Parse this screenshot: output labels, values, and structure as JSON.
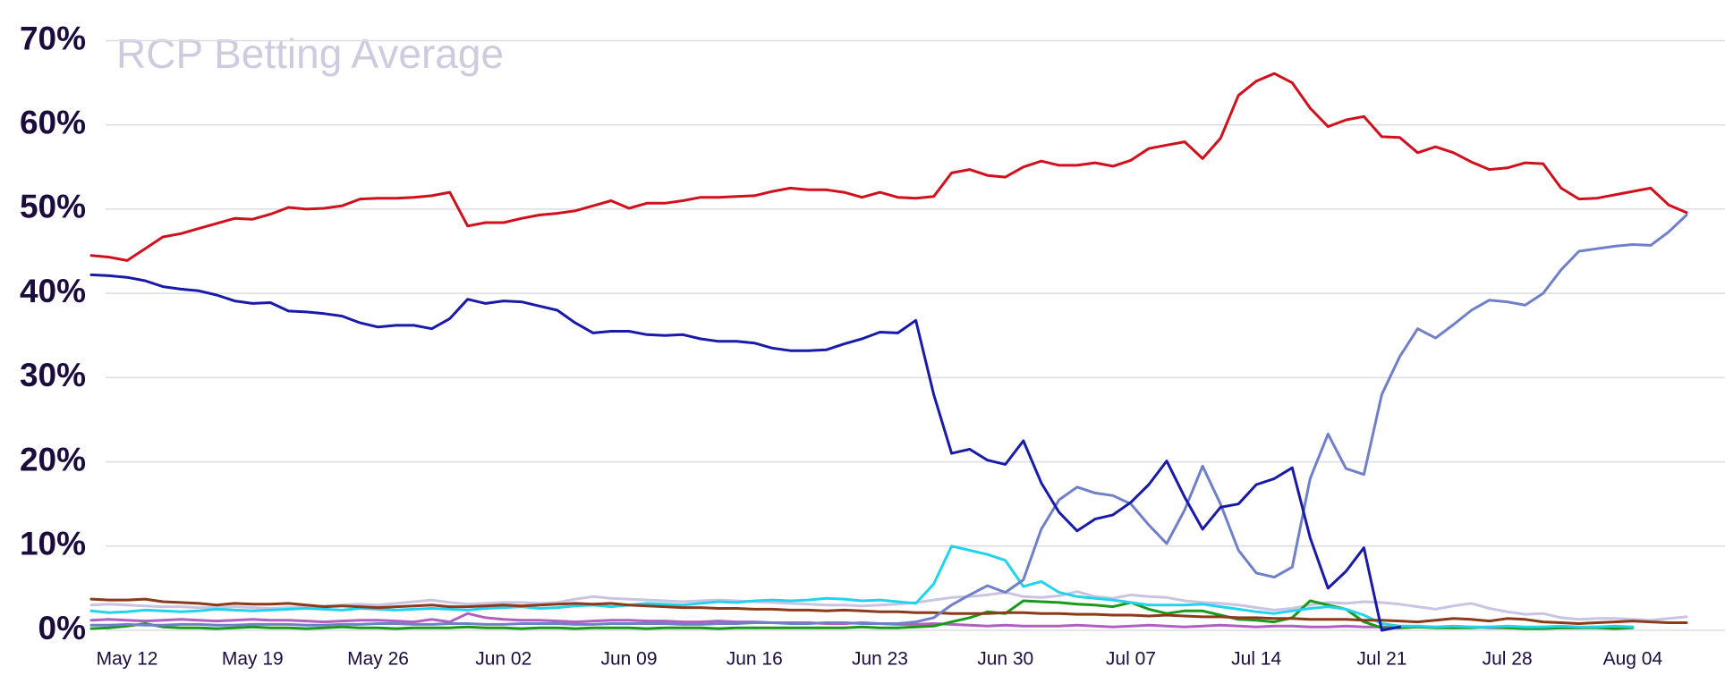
{
  "chart_data": {
    "type": "line",
    "title": "RCP Betting Average",
    "categories": [
      null,
      null,
      "May 12",
      null,
      null,
      null,
      null,
      null,
      null,
      "May 19",
      null,
      null,
      null,
      null,
      null,
      null,
      "May 26",
      null,
      null,
      null,
      null,
      null,
      null,
      "Jun 02",
      null,
      null,
      null,
      null,
      null,
      null,
      "Jun 09",
      null,
      null,
      null,
      null,
      null,
      null,
      "Jun 16",
      null,
      null,
      null,
      null,
      null,
      null,
      "Jun 23",
      null,
      null,
      null,
      null,
      null,
      null,
      "Jun 30",
      null,
      null,
      null,
      null,
      null,
      null,
      "Jul 07",
      null,
      null,
      null,
      null,
      null,
      null,
      "Jul 14",
      null,
      null,
      null,
      null,
      null,
      null,
      "Jul 21",
      null,
      null,
      null,
      null,
      null,
      null,
      "Jul 28",
      null,
      null,
      null,
      null,
      null,
      null,
      "Aug 04",
      null,
      null,
      null
    ],
    "ylim": [
      0,
      70
    ],
    "yticks": [
      {
        "value": 0,
        "label": "0%"
      },
      {
        "value": 10,
        "label": "10%"
      },
      {
        "value": 20,
        "label": "20%"
      },
      {
        "value": 30,
        "label": "30%"
      },
      {
        "value": 40,
        "label": "40%"
      },
      {
        "value": 50,
        "label": "50%"
      },
      {
        "value": 60,
        "label": "60%"
      },
      {
        "value": 70,
        "label": "70%"
      }
    ],
    "grid": true,
    "series": [
      {
        "color": "#cac3e2",
        "values": [
          3,
          3.1,
          3,
          2.9,
          2.8,
          2.8,
          2.7,
          2.7,
          2.8,
          2.7,
          2.6,
          2.7,
          2.8,
          2.9,
          3,
          3.1,
          3,
          3.2,
          3.4,
          3.6,
          3.3,
          3.1,
          3.2,
          3.3,
          3.3,
          3.2,
          3.3,
          3.7,
          4,
          3.8,
          3.7,
          3.6,
          3.5,
          3.4,
          3.5,
          3.6,
          3.5,
          3.4,
          3.3,
          3.2,
          3.1,
          3,
          3,
          2.9,
          3,
          3.1,
          3.3,
          3.6,
          3.9,
          4,
          4.2,
          4.5,
          4,
          3.9,
          4.1,
          4.6,
          4,
          3.8,
          4.2,
          4,
          3.9,
          3.5,
          3.3,
          3.2,
          3,
          2.7,
          2.4,
          2.6,
          3,
          3.3,
          3.2,
          3.4,
          3.3,
          3.1,
          2.8,
          2.5,
          2.9,
          3.2,
          2.6,
          2.2,
          1.9,
          2,
          1.5,
          1.3,
          1.4,
          1.4,
          1.3,
          1.2,
          1.4,
          1.6
        ]
      },
      {
        "color": "#b060c0",
        "values": [
          1.2,
          1.3,
          1.2,
          1.1,
          1.2,
          1.3,
          1.2,
          1.1,
          1.2,
          1.3,
          1.2,
          1.2,
          1.1,
          1,
          1.1,
          1.2,
          1.2,
          1.1,
          1,
          1.3,
          1,
          2,
          1.5,
          1.3,
          1.2,
          1.2,
          1.1,
          1,
          1.1,
          1.2,
          1.2,
          1.1,
          1.1,
          1,
          1,
          1.1,
          1,
          1,
          0.9,
          0.9,
          0.9,
          0.8,
          0.8,
          0.9,
          0.8,
          0.7,
          0.7,
          0.8,
          0.7,
          0.6,
          0.5,
          0.6,
          0.5,
          0.5,
          0.5,
          0.6,
          0.5,
          0.4,
          0.5,
          0.6,
          0.5,
          0.4,
          0.5,
          0.6,
          0.5,
          0.4,
          0.5,
          0.5,
          0.4,
          0.4,
          0.5,
          0.4,
          0.4,
          0.3,
          0.4,
          0.4,
          0.3,
          0.4,
          0.3,
          0.3,
          0.3,
          0.4,
          0.3,
          0.3,
          0.4,
          0.3,
          0.4,
          null,
          null,
          null
        ]
      },
      {
        "color": "#1a9a1a",
        "values": [
          0.2,
          0.3,
          0.5,
          0.8,
          0.4,
          0.3,
          0.3,
          0.2,
          0.3,
          0.4,
          0.3,
          0.3,
          0.2,
          0.3,
          0.4,
          0.3,
          0.3,
          0.2,
          0.3,
          0.3,
          0.3,
          0.4,
          0.3,
          0.3,
          0.2,
          0.3,
          0.3,
          0.2,
          0.3,
          0.3,
          0.3,
          0.2,
          0.3,
          0.3,
          0.3,
          0.2,
          0.3,
          0.3,
          0.3,
          0.3,
          0.3,
          0.3,
          0.3,
          0.4,
          0.3,
          0.3,
          0.4,
          0.5,
          1,
          1.5,
          2.2,
          2,
          3.5,
          3.4,
          3.3,
          3.1,
          3,
          2.8,
          3.3,
          2.5,
          2,
          2.3,
          2.3,
          1.8,
          1.3,
          1.2,
          1,
          1.5,
          3.5,
          3,
          2.5,
          1,
          0.3,
          0.3,
          0.4,
          0.3,
          0.3,
          0.3,
          0.4,
          0.3,
          0.2,
          0.2,
          0.3,
          0.3,
          0.3,
          0.2,
          0.3,
          null,
          null,
          null
        ]
      },
      {
        "color": "#22d3ee",
        "values": [
          2.3,
          2.1,
          2.2,
          2.4,
          2.3,
          2.2,
          2.3,
          2.5,
          2.4,
          2.3,
          2.4,
          2.5,
          2.6,
          2.5,
          2.4,
          2.6,
          2.5,
          2.4,
          2.5,
          2.6,
          2.5,
          2.4,
          2.6,
          2.7,
          2.8,
          2.6,
          2.7,
          2.9,
          3,
          2.8,
          3,
          3.2,
          3.1,
          3,
          3.2,
          3.4,
          3.3,
          3.5,
          3.6,
          3.5,
          3.6,
          3.8,
          3.7,
          3.5,
          3.6,
          3.4,
          3.2,
          5.5,
          10,
          9.5,
          9,
          8.3,
          5.2,
          5.8,
          4.5,
          4,
          3.8,
          3.6,
          3.3,
          3,
          3,
          3,
          3.1,
          2.8,
          2.5,
          2.2,
          2,
          2.3,
          2.6,
          2.8,
          2.5,
          1.8,
          0.8,
          0.5,
          0.5,
          0.4,
          0.5,
          0.4,
          0.4,
          0.5,
          0.4,
          0.4,
          0.5,
          0.4,
          0.4,
          0.5,
          0.4,
          null,
          null,
          null
        ]
      },
      {
        "color": "#8b3a1a",
        "values": [
          3.7,
          3.6,
          3.6,
          3.7,
          3.4,
          3.3,
          3.2,
          3,
          3.2,
          3.1,
          3.1,
          3.2,
          3,
          2.8,
          2.9,
          2.8,
          2.7,
          2.8,
          2.9,
          3,
          2.8,
          2.8,
          2.9,
          3,
          2.9,
          3,
          3.1,
          3.2,
          3.1,
          3.2,
          3,
          2.9,
          2.8,
          2.7,
          2.7,
          2.6,
          2.6,
          2.5,
          2.5,
          2.4,
          2.4,
          2.3,
          2.4,
          2.3,
          2.2,
          2.2,
          2.1,
          2.1,
          2,
          2,
          2,
          2.1,
          2.1,
          2,
          2,
          1.9,
          1.9,
          1.8,
          1.8,
          1.7,
          1.8,
          1.7,
          1.6,
          1.6,
          1.5,
          1.5,
          1.4,
          1.4,
          1.3,
          1.3,
          1.3,
          1.2,
          1.2,
          1.1,
          1,
          1.2,
          1.4,
          1.3,
          1.1,
          1.4,
          1.3,
          1,
          0.9,
          0.8,
          0.9,
          1,
          1.1,
          1,
          0.9,
          0.9
        ]
      },
      {
        "color": "#7080c8",
        "values": [
          0.6,
          0.6,
          0.7,
          0.6,
          0.6,
          0.7,
          0.7,
          0.6,
          0.6,
          0.7,
          0.7,
          0.7,
          0.6,
          0.6,
          0.7,
          0.7,
          0.8,
          0.8,
          0.7,
          0.7,
          0.8,
          0.8,
          0.7,
          0.7,
          0.8,
          0.8,
          0.8,
          0.7,
          0.7,
          0.8,
          0.8,
          0.8,
          0.8,
          0.7,
          0.7,
          0.8,
          0.8,
          0.9,
          0.9,
          0.8,
          0.8,
          0.9,
          0.9,
          0.8,
          0.8,
          0.8,
          1,
          1.5,
          3,
          4.2,
          5.3,
          4.5,
          6,
          12,
          15.5,
          17,
          16.3,
          16,
          15,
          12.5,
          10.3,
          14.3,
          19.5,
          15,
          9.5,
          6.8,
          6.3,
          7.5,
          18,
          23.3,
          19.2,
          18.5,
          28,
          32.5,
          35.8,
          34.7,
          36.3,
          38,
          39.2,
          39,
          38.6,
          40,
          42.8,
          45,
          45.3,
          45.6,
          45.8,
          45.7,
          47.3,
          49.3
        ]
      },
      {
        "color": "#1a1aa8",
        "values": [
          42.2,
          42.1,
          41.9,
          41.5,
          40.8,
          40.5,
          40.3,
          39.8,
          39.1,
          38.8,
          38.9,
          37.9,
          37.8,
          37.6,
          37.3,
          36.5,
          36,
          36.2,
          36.2,
          35.8,
          37,
          39.3,
          38.8,
          39.1,
          39,
          38.5,
          38,
          36.5,
          35.3,
          35.5,
          35.5,
          35.1,
          35,
          35.1,
          34.6,
          34.3,
          34.3,
          34.1,
          33.5,
          33.2,
          33.2,
          33.3,
          34,
          34.6,
          35.4,
          35.3,
          36.8,
          28,
          21,
          21.5,
          20.2,
          19.7,
          22.5,
          17.5,
          14,
          11.8,
          13.2,
          13.7,
          15.2,
          17.3,
          20.1,
          15.8,
          12,
          14.6,
          15,
          17.3,
          18,
          19.3,
          11,
          5,
          7,
          9.8,
          0,
          0.4,
          null,
          null,
          null,
          null,
          null,
          null,
          null,
          null,
          null,
          null,
          null,
          null,
          null,
          null,
          null,
          null
        ]
      },
      {
        "color": "#d0101c",
        "values": [
          44.5,
          44.3,
          43.9,
          45.3,
          46.7,
          47.1,
          47.7,
          48.3,
          48.9,
          48.8,
          49.4,
          50.2,
          50,
          50.1,
          50.4,
          51.2,
          51.3,
          51.3,
          51.4,
          51.6,
          52,
          48,
          48.4,
          48.4,
          48.9,
          49.3,
          49.5,
          49.8,
          50.4,
          51,
          50.1,
          50.7,
          50.7,
          51,
          51.4,
          51.4,
          51.5,
          51.6,
          52.1,
          52.5,
          52.3,
          52.3,
          52,
          51.4,
          52,
          51.4,
          51.3,
          51.5,
          54.3,
          54.7,
          54,
          53.8,
          55,
          55.7,
          55.2,
          55.2,
          55.5,
          55.1,
          55.8,
          57.2,
          57.6,
          58,
          56,
          58.4,
          63.5,
          65.2,
          66.1,
          65,
          62,
          59.8,
          60.6,
          61,
          58.6,
          58.5,
          56.7,
          57.4,
          56.7,
          55.6,
          54.7,
          54.9,
          55.5,
          55.4,
          52.5,
          51.2,
          51.3,
          51.7,
          52.1,
          52.5,
          50.5,
          49.6
        ]
      }
    ]
  }
}
